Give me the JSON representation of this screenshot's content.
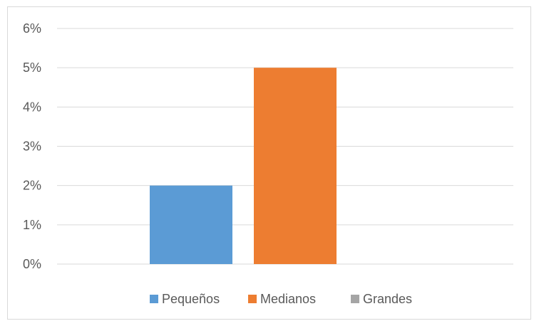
{
  "chart_data": {
    "type": "bar",
    "title": "",
    "xlabel": "",
    "ylabel": "",
    "ylim": [
      0,
      6
    ],
    "yticks": [
      "0%",
      "1%",
      "2%",
      "3%",
      "4%",
      "5%",
      "6%"
    ],
    "grid": true,
    "legend_position": "bottom",
    "series": [
      {
        "name": "Pequeños",
        "value": 2,
        "color": "#5b9bd5"
      },
      {
        "name": "Medianos",
        "value": 5,
        "color": "#ed7d31"
      },
      {
        "name": "Grandes",
        "value": 0,
        "color": "#a5a5a5"
      }
    ]
  }
}
